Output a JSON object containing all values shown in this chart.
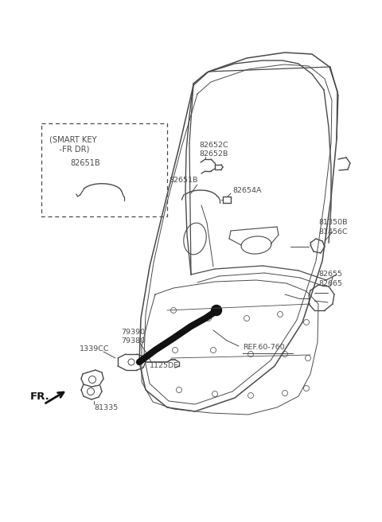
{
  "bg_color": "#ffffff",
  "line_color": "#4a4a4a",
  "figsize": [
    4.8,
    6.56
  ],
  "dpi": 100,
  "labels": {
    "smart_key_box_title_line1": "(SMART KEY",
    "smart_key_box_title_line2": "    -FR DR)",
    "smart_key_box_part": "82651B",
    "label_82652C": "82652C",
    "label_82652B": "82652B",
    "label_82651B_main": "82651B",
    "label_82654A": "82654A",
    "label_81350B": "81350B",
    "label_81456C": "81456C",
    "label_82655": "82655",
    "label_82665": "82665",
    "label_79390": "79390",
    "label_79380": "79380",
    "label_1339CC": "1339CC",
    "label_1125DE": "1125DE",
    "label_81335": "81335",
    "label_FR": "FR.",
    "label_REF": "REF.60-760"
  },
  "door": {
    "outer_x": [
      230,
      245,
      310,
      355,
      385,
      410,
      420,
      418,
      410,
      395,
      370,
      330,
      270,
      215,
      190,
      175,
      178,
      195,
      215,
      230
    ],
    "outer_y": [
      108,
      90,
      72,
      65,
      68,
      85,
      115,
      170,
      240,
      320,
      390,
      450,
      500,
      520,
      510,
      480,
      430,
      360,
      280,
      108
    ],
    "inner_x": [
      235,
      250,
      310,
      350,
      375,
      395,
      405,
      402,
      393,
      378,
      355,
      320,
      268,
      218,
      195,
      183,
      185,
      200,
      220,
      235
    ],
    "inner_y": [
      120,
      105,
      88,
      82,
      85,
      100,
      125,
      175,
      245,
      320,
      388,
      443,
      492,
      510,
      500,
      472,
      425,
      355,
      278,
      120
    ]
  }
}
